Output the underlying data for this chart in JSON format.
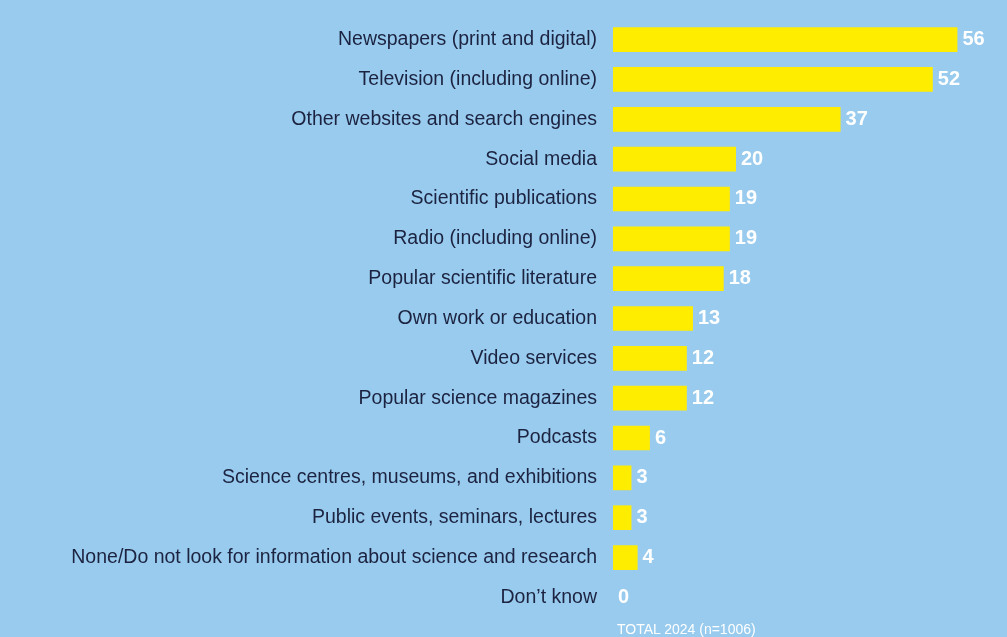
{
  "chart_data": {
    "type": "bar",
    "orientation": "horizontal",
    "categories": [
      "Newspapers (print and digital)",
      "Television (including online)",
      "Other websites and search engines",
      "Social media",
      "Scientific publications",
      "Radio (including online)",
      "Popular scientific literature",
      "Own work or education",
      "Video services",
      "Popular science magazines",
      "Podcasts",
      "Science centres, museums, and exhibitions",
      "Public events, seminars, lectures",
      "None/Do not look for information about science and research",
      "Don’t know"
    ],
    "values": [
      56,
      52,
      37,
      20,
      19,
      19,
      18,
      13,
      12,
      12,
      6,
      3,
      3,
      4,
      0
    ],
    "color": "#ffed00",
    "data_labels": true,
    "annotations": [
      "TOTAL 2024 (n=1006)"
    ]
  }
}
